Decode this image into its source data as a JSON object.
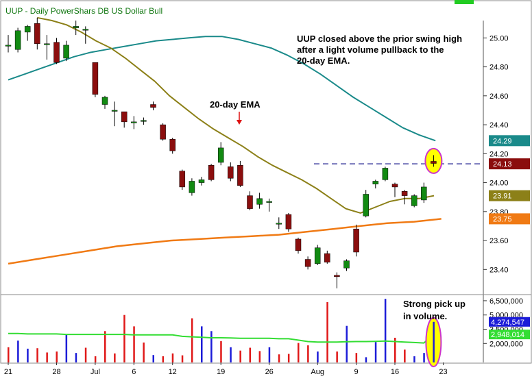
{
  "header": {
    "title": "UUP - Daily  PowerShars DB US Dollar Bull"
  },
  "annotations": {
    "commentary": [
      "UUP closed above the prior swing high",
      "after a light volume pullback to the",
      "20-day EMA."
    ],
    "ema_label": "20-day EMA",
    "volume_note": [
      "Strong pick up",
      "in volume."
    ]
  },
  "colors": {
    "up": "#128a12",
    "down": "#8b0e0e",
    "ema20": "#8c8018",
    "ema50": "#1a8a8a",
    "ema200": "#f07a14",
    "volume_up": "#1c1cd8",
    "volume_down": "#e01818",
    "volume_avg": "#33dd33",
    "highlight_fill": "#ffff00",
    "highlight_ring": "#cc33cc",
    "swing_line": "#1a1a8c",
    "arrow": "#dd1111",
    "text": "#000000",
    "title_text": "#117711",
    "grid_top_marker": "#22cc22"
  },
  "chart_data": {
    "type": "candlestick",
    "x_tick_labels": [
      "21",
      "28",
      "Jul",
      "6",
      "12",
      "19",
      "26",
      "Aug",
      "9",
      "16",
      "23"
    ],
    "price_axis": {
      "ylim": [
        23.25,
        25.12
      ],
      "ticks": [
        "25.00",
        "24.80",
        "24.60",
        "24.40",
        "24.20",
        "24.00",
        "23.80",
        "23.60",
        "23.40"
      ]
    },
    "price_badges": [
      {
        "label": "24.29",
        "color": "#1a8a8a"
      },
      {
        "label": "24.13",
        "color": "#8b0e0e"
      },
      {
        "label": "23.91",
        "color": "#8c8018"
      },
      {
        "label": "23.75",
        "color": "#f07a14"
      }
    ],
    "candles": [
      {
        "o": 24.95,
        "h": 25.02,
        "l": 24.9,
        "c": 24.95
      },
      {
        "o": 24.92,
        "h": 25.07,
        "l": 24.9,
        "c": 25.05
      },
      {
        "o": 25.04,
        "h": 25.09,
        "l": 24.98,
        "c": 25.08
      },
      {
        "o": 25.1,
        "h": 25.14,
        "l": 24.92,
        "c": 24.96
      },
      {
        "o": 24.96,
        "h": 25.02,
        "l": 24.85,
        "c": 24.96
      },
      {
        "o": 24.97,
        "h": 25.0,
        "l": 24.82,
        "c": 24.83
      },
      {
        "o": 24.86,
        "h": 24.98,
        "l": 24.84,
        "c": 24.95
      },
      {
        "o": 25.07,
        "h": 25.12,
        "l": 25.02,
        "c": 25.08
      },
      {
        "o": 25.06,
        "h": 25.08,
        "l": 24.96,
        "c": 25.06
      },
      {
        "o": 24.83,
        "h": 24.83,
        "l": 24.59,
        "c": 24.61
      },
      {
        "o": 24.54,
        "h": 24.6,
        "l": 24.51,
        "c": 24.59
      },
      {
        "o": 24.5,
        "h": 24.56,
        "l": 24.39,
        "c": 24.5
      },
      {
        "o": 24.49,
        "h": 24.49,
        "l": 24.38,
        "c": 24.42
      },
      {
        "o": 24.42,
        "h": 24.46,
        "l": 24.37,
        "c": 24.42
      },
      {
        "o": 24.43,
        "h": 24.45,
        "l": 24.4,
        "c": 24.43
      },
      {
        "o": 24.54,
        "h": 24.56,
        "l": 24.5,
        "c": 24.52
      },
      {
        "o": 24.4,
        "h": 24.41,
        "l": 24.29,
        "c": 24.3
      },
      {
        "o": 24.3,
        "h": 24.31,
        "l": 24.2,
        "c": 24.22
      },
      {
        "o": 24.08,
        "h": 24.09,
        "l": 23.95,
        "c": 23.97
      },
      {
        "o": 23.93,
        "h": 24.03,
        "l": 23.91,
        "c": 24.01
      },
      {
        "o": 24.0,
        "h": 24.04,
        "l": 23.98,
        "c": 24.02
      },
      {
        "o": 24.12,
        "h": 24.13,
        "l": 24.01,
        "c": 24.02
      },
      {
        "o": 24.14,
        "h": 24.28,
        "l": 24.12,
        "c": 24.24
      },
      {
        "o": 24.11,
        "h": 24.14,
        "l": 24.01,
        "c": 24.03
      },
      {
        "o": 24.12,
        "h": 24.15,
        "l": 23.97,
        "c": 23.98
      },
      {
        "o": 23.91,
        "h": 23.94,
        "l": 23.81,
        "c": 23.82
      },
      {
        "o": 23.85,
        "h": 23.93,
        "l": 23.82,
        "c": 23.89
      },
      {
        "o": 23.87,
        "h": 23.89,
        "l": 23.8,
        "c": 23.87
      },
      {
        "o": 23.72,
        "h": 23.76,
        "l": 23.68,
        "c": 23.72
      },
      {
        "o": 23.78,
        "h": 23.79,
        "l": 23.66,
        "c": 23.68
      },
      {
        "o": 23.61,
        "h": 23.62,
        "l": 23.51,
        "c": 23.53
      },
      {
        "o": 23.47,
        "h": 23.49,
        "l": 23.4,
        "c": 23.42
      },
      {
        "o": 23.44,
        "h": 23.57,
        "l": 23.43,
        "c": 23.55
      },
      {
        "o": 23.51,
        "h": 23.53,
        "l": 23.44,
        "c": 23.45
      },
      {
        "o": 23.36,
        "h": 23.38,
        "l": 23.27,
        "c": 23.35
      },
      {
        "o": 23.41,
        "h": 23.47,
        "l": 23.39,
        "c": 23.46
      },
      {
        "o": 23.68,
        "h": 23.71,
        "l": 23.49,
        "c": 23.52
      },
      {
        "o": 23.77,
        "h": 23.95,
        "l": 23.76,
        "c": 23.92
      },
      {
        "o": 23.99,
        "h": 24.02,
        "l": 23.96,
        "c": 24.01
      },
      {
        "o": 24.02,
        "h": 24.11,
        "l": 24.01,
        "c": 24.1
      },
      {
        "o": 23.99,
        "h": 24.0,
        "l": 23.9,
        "c": 23.97
      },
      {
        "o": 23.94,
        "h": 23.95,
        "l": 23.85,
        "c": 23.91
      },
      {
        "o": 23.84,
        "h": 23.92,
        "l": 23.83,
        "c": 23.91
      },
      {
        "o": 23.88,
        "h": 24.0,
        "l": 23.86,
        "c": 23.97
      },
      {
        "o": 24.14,
        "h": 24.19,
        "l": 24.11,
        "c": 24.13
      }
    ],
    "ema20": [
      25.14,
      25.12,
      25.09,
      25.04,
      24.98,
      24.93,
      24.86,
      24.78,
      24.7,
      24.6,
      24.52,
      24.44,
      24.37,
      24.31,
      24.25,
      24.18,
      24.12,
      24.07,
      24.02,
      23.96,
      23.89,
      23.82,
      23.79,
      23.83,
      23.87,
      23.89,
      23.89,
      23.91
    ],
    "ema50": [
      24.71,
      24.75,
      24.79,
      24.83,
      24.87,
      24.9,
      24.92,
      24.94,
      24.96,
      24.98,
      24.99,
      25.0,
      25.01,
      25.01,
      24.99,
      24.96,
      24.93,
      24.88,
      24.82,
      24.75,
      24.67,
      24.59,
      24.52,
      24.45,
      24.38,
      24.33,
      24.29
    ],
    "ema200": [
      23.44,
      23.47,
      23.5,
      23.53,
      23.56,
      23.58,
      23.6,
      23.61,
      23.62,
      23.63,
      23.64,
      23.66,
      23.68,
      23.7,
      23.72,
      23.73,
      23.75
    ],
    "swing_high": 24.13,
    "volume": {
      "ticks": [
        "6,500,000",
        "5,000,000",
        "3,500,000",
        "2,000,000"
      ],
      "ylim": [
        0,
        7000000
      ],
      "badges": [
        {
          "label": "4,274,547",
          "color": "#1c1cd8"
        },
        {
          "label": "2,948,014",
          "color": "#33dd33"
        }
      ],
      "bars": [
        1600000,
        2300000,
        1450000,
        1500000,
        1050000,
        1150000,
        2900000,
        1000000,
        1550000,
        650000,
        3300000,
        950000,
        5000000,
        3800000,
        2100000,
        780000,
        650000,
        950000,
        750000,
        4650000,
        3800000,
        3300000,
        2250000,
        1600000,
        1250000,
        1550000,
        1200000,
        1600000,
        850000,
        900000,
        2050000,
        1800000,
        1150000,
        6350000,
        1150000,
        3850000,
        1000000,
        550000,
        2150000,
        6700000,
        2600000,
        1350000,
        650000,
        1000000,
        4274547
      ],
      "up": [
        false,
        true,
        true,
        false,
        false,
        false,
        true,
        true,
        false,
        false,
        false,
        false,
        false,
        false,
        false,
        true,
        false,
        false,
        false,
        false,
        true,
        true,
        false,
        true,
        false,
        false,
        false,
        true,
        false,
        false,
        false,
        false,
        true,
        false,
        false,
        true,
        false,
        true,
        true,
        true,
        false,
        false,
        true,
        true,
        true
      ],
      "avg": [
        3.05,
        3.05,
        3.0,
        3.0,
        3.0,
        3.0,
        2.95,
        2.95,
        2.95,
        2.95,
        2.95,
        2.95,
        2.95,
        2.9,
        2.9,
        2.9,
        2.9,
        2.9,
        2.75,
        2.7,
        2.65,
        2.6,
        2.6,
        2.58,
        2.55,
        2.55,
        2.55,
        2.55,
        2.5,
        2.5,
        2.35,
        2.2,
        2.15,
        2.15,
        2.15,
        2.18,
        2.2,
        2.2,
        2.22,
        2.25,
        2.2,
        2.15,
        2.1,
        2.05,
        2.948014
      ]
    }
  }
}
